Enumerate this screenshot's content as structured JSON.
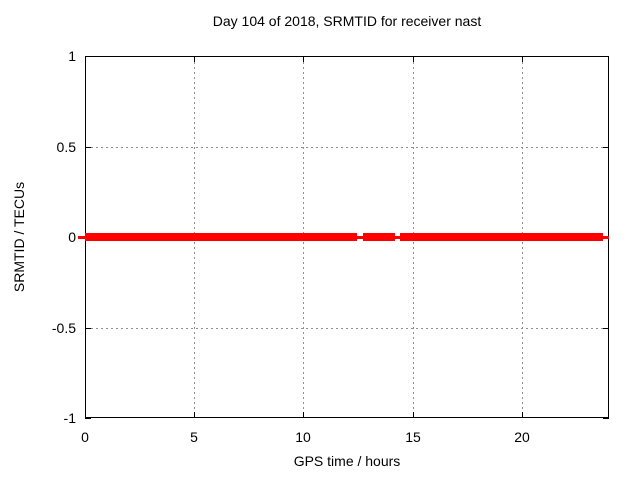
{
  "chart_data": {
    "type": "line",
    "title": "Day 104 of 2018, SRMTID for receiver nast",
    "xlabel": "GPS time / hours",
    "ylabel": "SRMTID / TECUs",
    "xlim": [
      0,
      24
    ],
    "ylim": [
      -1,
      1
    ],
    "xticks": [
      {
        "value": 0,
        "label": "0"
      },
      {
        "value": 5,
        "label": "5"
      },
      {
        "value": 10,
        "label": "10"
      },
      {
        "value": 15,
        "label": "15"
      },
      {
        "value": 20,
        "label": "20"
      }
    ],
    "yticks": [
      {
        "value": -1,
        "label": "-1"
      },
      {
        "value": -0.5,
        "label": "-0.5"
      },
      {
        "value": 0,
        "label": "0"
      },
      {
        "value": 0.5,
        "label": "0.5"
      },
      {
        "value": 1,
        "label": "1"
      }
    ],
    "grid": true,
    "grid_color": "#909090",
    "border_color": "#000000",
    "series": [
      {
        "name": "SRMTID",
        "color": "#ff0000",
        "y": 0,
        "thick_segments_x": [
          [
            0,
            12.45
          ],
          [
            12.72,
            14.17
          ],
          [
            14.45,
            23.77
          ]
        ],
        "thin_line_x": [
          0,
          24
        ]
      }
    ]
  }
}
